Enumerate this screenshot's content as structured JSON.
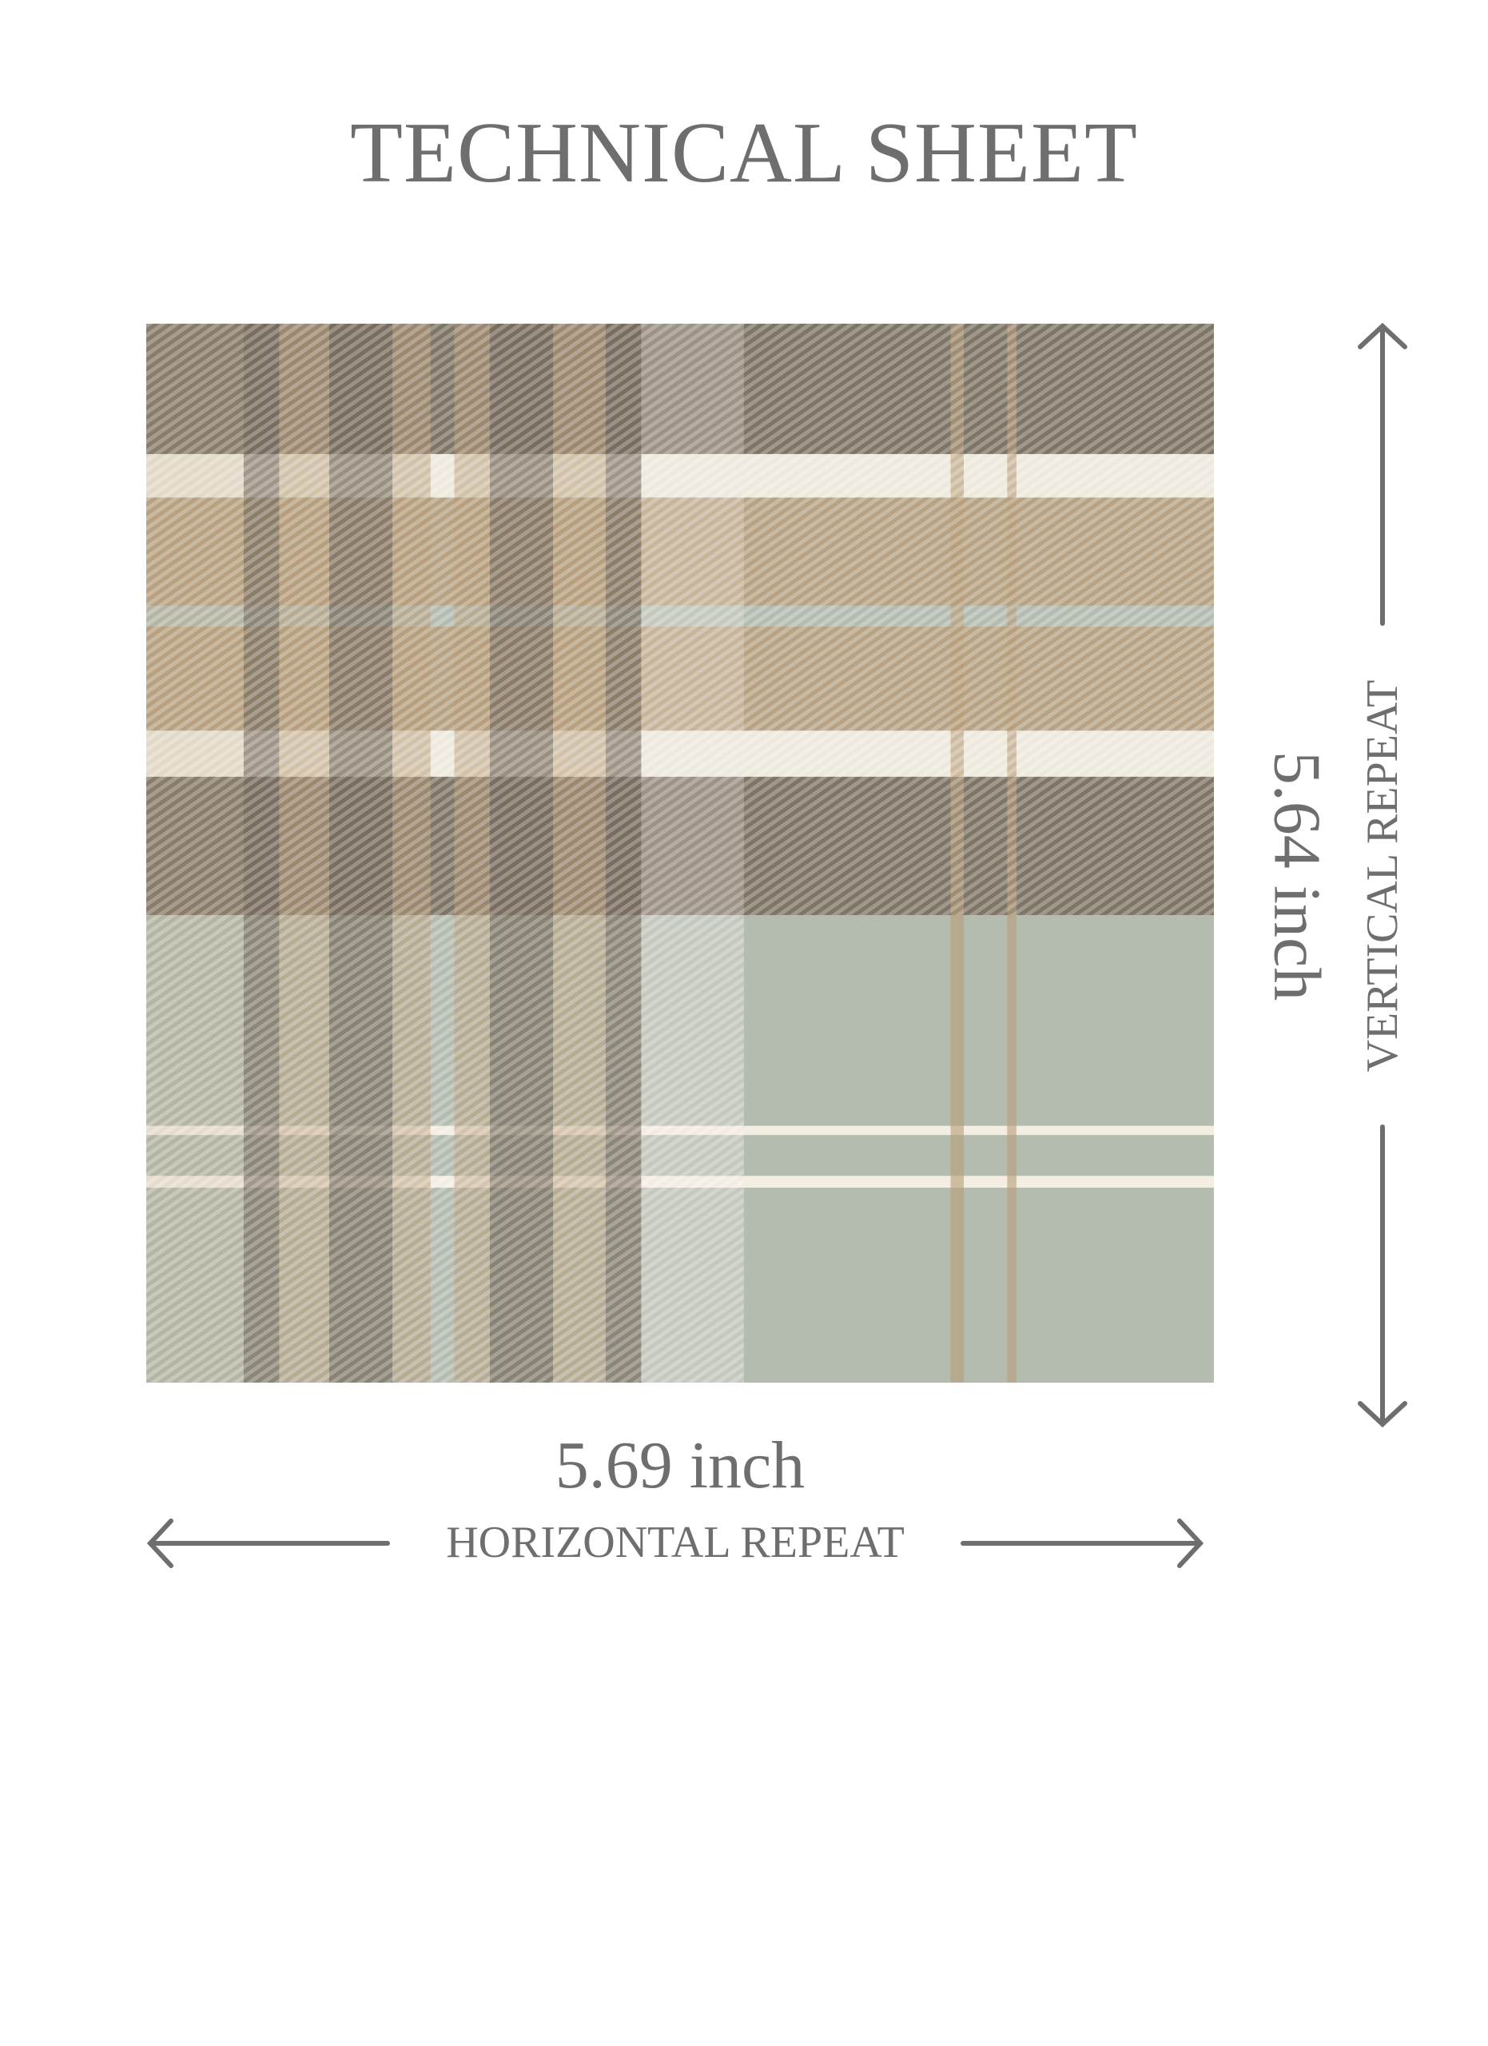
{
  "title": "TECHNICAL SHEET",
  "horizontal": {
    "dimension": "5.69 inch",
    "label": "HORIZONTAL REPEAT"
  },
  "vertical": {
    "dimension": "5.64 inch",
    "label": "VERTICAL REPEAT"
  },
  "colors": {
    "text": "#6e6e6e",
    "sage": "#b4bcb0",
    "dark_brown": "#75695b",
    "tan": "#b89c78",
    "cream": "#f3ede2"
  }
}
